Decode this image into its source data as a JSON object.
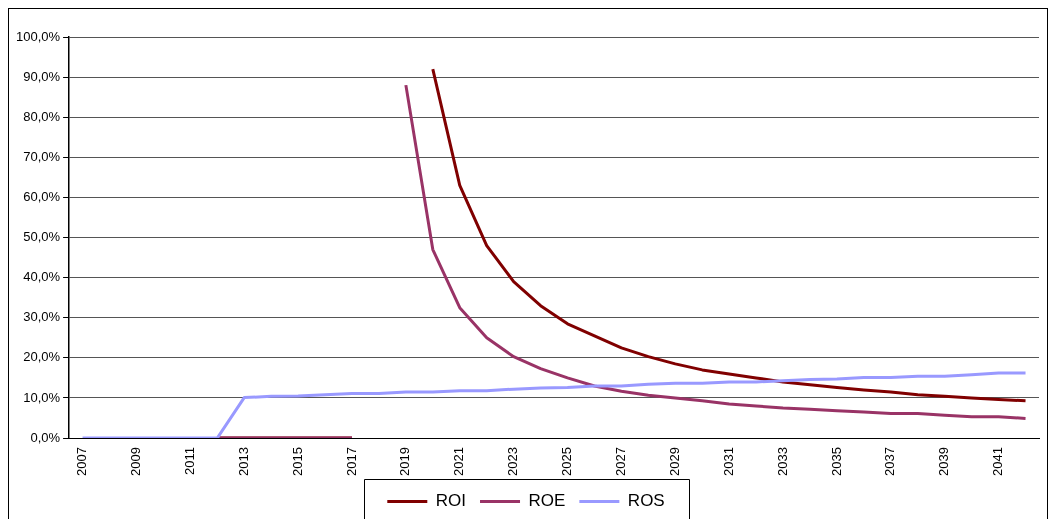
{
  "chart_data": {
    "type": "line",
    "categories": [
      "2007",
      null,
      "2009",
      null,
      "2011",
      null,
      "2013",
      null,
      "2015",
      null,
      "2017",
      null,
      "2019",
      null,
      "2021",
      null,
      "2023",
      null,
      "2025",
      null,
      "2027",
      null,
      "2029",
      null,
      "2031",
      null,
      "2033",
      null,
      "2035",
      null,
      "2037",
      null,
      "2039",
      null,
      "2041",
      null
    ],
    "series": [
      {
        "name": "ROI",
        "color": "#800000",
        "values": [
          null,
          null,
          null,
          null,
          null,
          0,
          0,
          0,
          0,
          0,
          0,
          null,
          null,
          92,
          63,
          48,
          39,
          33,
          28.5,
          25.5,
          22.5,
          20.3,
          18.5,
          17,
          16,
          15,
          14,
          13.3,
          12.6,
          12,
          11.5,
          10.8,
          10.4,
          10,
          9.6,
          9.3
        ]
      },
      {
        "name": "ROE",
        "color": "#993366",
        "values": [
          null,
          null,
          null,
          null,
          null,
          0,
          0,
          0,
          0,
          0,
          0,
          null,
          88,
          47,
          32.5,
          25,
          20.3,
          17.3,
          15,
          13,
          11.7,
          10.7,
          10,
          9.3,
          8.5,
          8,
          7.5,
          7.2,
          6.8,
          6.5,
          6.1,
          6.1,
          5.7,
          5.3,
          5.3,
          4.9
        ]
      },
      {
        "name": "ROS",
        "color": "#9999ff",
        "values": [
          0,
          0,
          0,
          0,
          0,
          0,
          10.1,
          10.4,
          10.5,
          10.8,
          11.1,
          11.1,
          11.5,
          11.5,
          11.8,
          11.8,
          12.2,
          12.5,
          12.6,
          13,
          13,
          13.4,
          13.7,
          13.7,
          14,
          14,
          14.3,
          14.6,
          14.7,
          15.1,
          15.1,
          15.4,
          15.4,
          15.8,
          16.2,
          16.2
        ]
      }
    ],
    "ylim": [
      0,
      100
    ],
    "yticks": [
      {
        "value": 0,
        "label": "0,0%"
      },
      {
        "value": 10,
        "label": "10,0%"
      },
      {
        "value": 20,
        "label": "20,0%"
      },
      {
        "value": 30,
        "label": "30,0%"
      },
      {
        "value": 40,
        "label": "40,0%"
      },
      {
        "value": 50,
        "label": "50,0%"
      },
      {
        "value": 60,
        "label": "60,0%"
      },
      {
        "value": 70,
        "label": "70,0%"
      },
      {
        "value": 80,
        "label": "80,0%"
      },
      {
        "value": 90,
        "label": "90,0%"
      },
      {
        "value": 100,
        "label": "100,0%"
      }
    ],
    "grid": "y",
    "legend": "bottom",
    "marker": "none",
    "line_style": "solid"
  }
}
